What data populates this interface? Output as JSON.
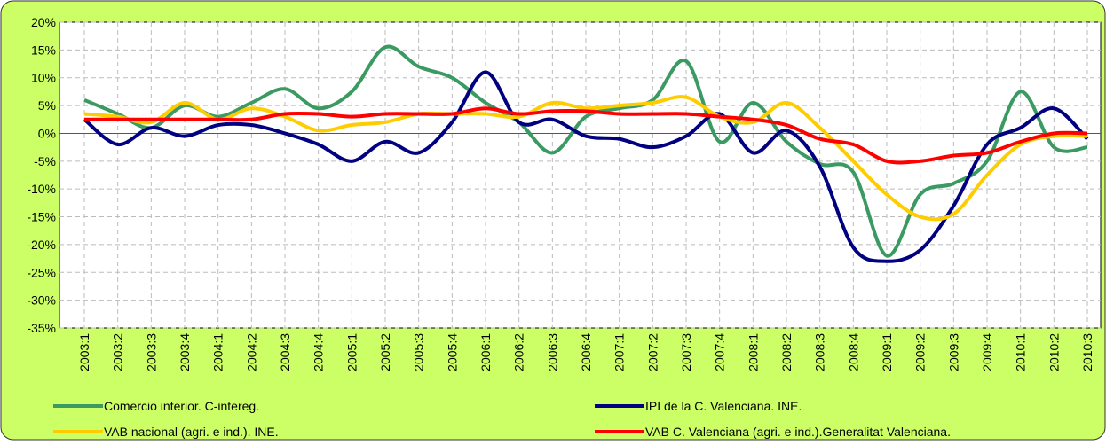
{
  "chart_data": {
    "type": "line",
    "categories": [
      "2003:1",
      "2003:2",
      "2003:3",
      "2003:4",
      "2004:1",
      "2004:2",
      "2004:3",
      "2004:4",
      "2005:1",
      "2005:2",
      "2005:3",
      "2005:4",
      "2006:1",
      "2006:2",
      "2006:3",
      "2006:4",
      "2007:1",
      "2007:2",
      "2007:3",
      "2007:4",
      "2008:1",
      "2008:2",
      "2008:3",
      "2008:4",
      "2009:1",
      "2009:2",
      "2009:3",
      "2009:4",
      "2010:1",
      "2010:2",
      "2010:3"
    ],
    "series": [
      {
        "name": "Comercio interior. C-intereg.",
        "color": "#3a9a62",
        "values": [
          6,
          3.5,
          1,
          5,
          3,
          5.5,
          8,
          4.5,
          7.5,
          15.5,
          12,
          10,
          5.5,
          2,
          -3.5,
          3,
          4.5,
          6,
          13,
          -1.5,
          5.5,
          -1.5,
          -5.5,
          -7,
          -22,
          -11,
          -9,
          -5,
          7.5,
          -2.5,
          -2.5
        ]
      },
      {
        "name": "IPI de la C. Valenciana. INE.",
        "color": "#000080",
        "values": [
          2.5,
          -2,
          1,
          -0.5,
          1.5,
          1.5,
          0,
          -2,
          -5,
          -1.5,
          -3.5,
          2,
          11,
          2,
          2.5,
          -0.5,
          -1,
          -2.5,
          -0.5,
          3.5,
          -3.5,
          0.5,
          -6,
          -20.5,
          -23,
          -21,
          -13,
          -2,
          1,
          4.5,
          -1
        ]
      },
      {
        "name": "VAB nacional (agri. e ind.). INE.",
        "color": "#ffcc00",
        "values": [
          3.5,
          3,
          2,
          5.5,
          2.5,
          4.5,
          3,
          0.5,
          1.5,
          2,
          3.5,
          3.5,
          3.5,
          3,
          5.5,
          4.5,
          5,
          5.5,
          6.5,
          3,
          2,
          5.5,
          1,
          -5,
          -11,
          -15,
          -14.5,
          -7.5,
          -2,
          -0.5,
          -0.5
        ]
      },
      {
        "name": "VAB C. Valenciana (agri. e  ind.).Generalitat Valenciana.",
        "color": "#ff0000",
        "values": [
          2.5,
          2.5,
          2.5,
          2.5,
          2.5,
          2.5,
          3.5,
          3.5,
          3,
          3.5,
          3.5,
          3.5,
          4.5,
          3.5,
          4,
          4,
          3.5,
          3.5,
          3.5,
          3,
          2.5,
          1.5,
          -1,
          -2,
          -5,
          -5,
          -4,
          -3.5,
          -1.5,
          0,
          0
        ]
      }
    ],
    "ylim": [
      -35,
      20
    ],
    "yticks": [
      {
        "value": -35,
        "label": "-35%"
      },
      {
        "value": -30,
        "label": "-30%"
      },
      {
        "value": -25,
        "label": "-25%"
      },
      {
        "value": -20,
        "label": "-20%"
      },
      {
        "value": -15,
        "label": "-15%"
      },
      {
        "value": -10,
        "label": "-10%"
      },
      {
        "value": -5,
        "label": "-5%"
      },
      {
        "value": 0,
        "label": "0%"
      },
      {
        "value": 5,
        "label": "5%"
      },
      {
        "value": 10,
        "label": "10%"
      },
      {
        "value": 15,
        "label": "15%"
      },
      {
        "value": 20,
        "label": "20%"
      }
    ],
    "grid": true,
    "legend": "bottom"
  }
}
